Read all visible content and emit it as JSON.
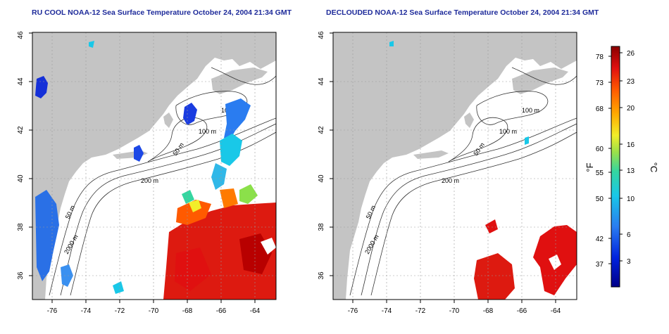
{
  "maps": [
    {
      "title": "RU COOL NOAA-12 Sea Surface Temperature October 24, 2004 21:34 GMT",
      "x_ticks": [
        "-76",
        "-74",
        "-72",
        "-70",
        "-68",
        "-66",
        "-64"
      ],
      "y_ticks": [
        "36",
        "38",
        "40",
        "42",
        "44",
        "46"
      ],
      "contour_labels": [
        "100 m",
        "100 m",
        "50 m",
        "200 m",
        "50 m",
        "2000 m"
      ]
    },
    {
      "title": "DECLOUDED NOAA-12 Sea Surface Temperature October 24, 2004 21:34 GMT",
      "x_ticks": [
        "-76",
        "-74",
        "-72",
        "-70",
        "-68",
        "-66",
        "-64"
      ],
      "y_ticks": [
        "36",
        "38",
        "40",
        "42",
        "44",
        "46"
      ],
      "contour_labels": [
        "100 m",
        "100 m",
        "50 m",
        "200 m",
        "50 m",
        "2000 m"
      ]
    }
  ],
  "colorbar": {
    "f_label": "°F",
    "c_label": "°C",
    "f_ticks": [
      "78",
      "73",
      "68",
      "60",
      "55",
      "50",
      "42",
      "37"
    ],
    "c_ticks": [
      "26",
      "23",
      "20",
      "16",
      "13",
      "10",
      "6",
      "3"
    ]
  },
  "colors": {
    "land": "#c4c4c4",
    "title": "#1d2a9a",
    "grid": "#9a9a9a",
    "contour": "#333333"
  }
}
